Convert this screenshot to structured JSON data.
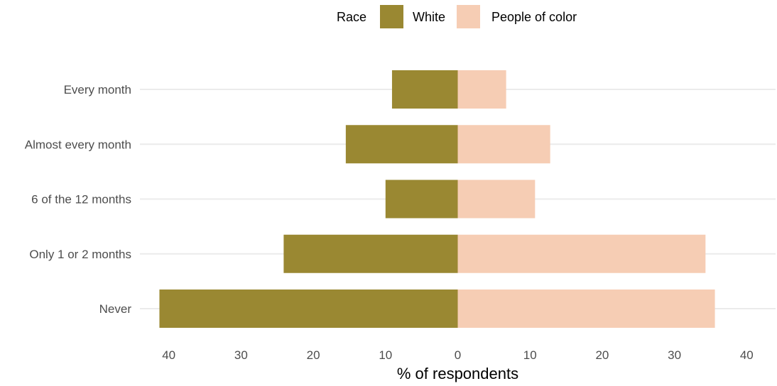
{
  "chart_data": {
    "type": "bar",
    "orientation": "horizontal-diverging",
    "title": "",
    "xlabel": "% of respondents",
    "ylabel": "",
    "xlim": [
      -44,
      44
    ],
    "x_ticks": [
      -40,
      -30,
      -20,
      -10,
      0,
      10,
      20,
      30,
      40
    ],
    "x_tick_labels": [
      "40",
      "30",
      "20",
      "10",
      "0",
      "10",
      "20",
      "30",
      "40"
    ],
    "categories": [
      "Every month",
      "Almost every month",
      "6 of the 12 months",
      "Only 1 or 2 months",
      "Never"
    ],
    "series": [
      {
        "name": "White",
        "side": "left",
        "color": "#9a8832",
        "values": [
          9.1,
          15.5,
          10.0,
          24.1,
          41.3
        ]
      },
      {
        "name": "People of color",
        "side": "right",
        "color": "#f6cdb4",
        "values": [
          6.7,
          12.8,
          10.7,
          34.3,
          35.6
        ]
      }
    ],
    "legend": {
      "title": "Race",
      "position": "top"
    },
    "grid": {
      "horizontal_major": true,
      "vertical": false
    }
  }
}
